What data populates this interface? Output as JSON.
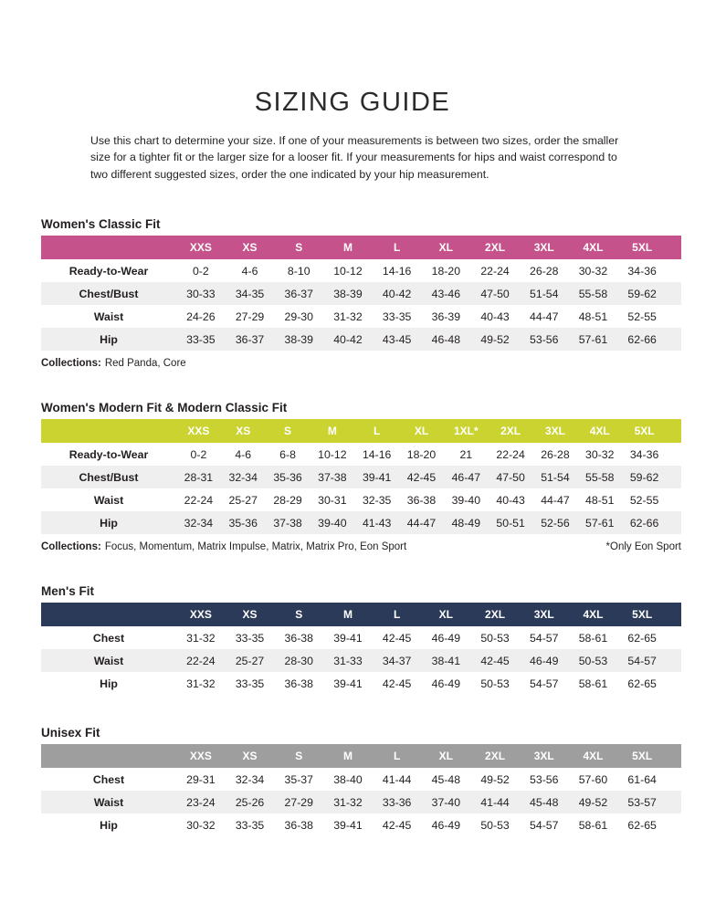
{
  "page": {
    "title": "SIZING GUIDE",
    "intro": "Use this chart to determine your size. If one of your measurements is between two sizes, order the smaller size for a tighter fit or the larger size for a looser fit. If your measurements for hips and waist correspond to two different suggested sizes, order the one indicated by your hip measurement."
  },
  "colors": {
    "womens_classic_header": "#C5528A",
    "womens_modern_header": "#CAD32F",
    "mens_header": "#2B3A59",
    "unisex_header": "#9E9E9E",
    "row_stripe": "#EFEFEF",
    "text": "#231F20"
  },
  "tables": [
    {
      "title": "Women's Classic Fit",
      "header_color": "#C5528A",
      "columns": [
        "XXS",
        "XS",
        "S",
        "M",
        "L",
        "XL",
        "2XL",
        "3XL",
        "4XL",
        "5XL"
      ],
      "rows": [
        {
          "label": "Ready-to-Wear",
          "values": [
            "0-2",
            "4-6",
            "8-10",
            "10-12",
            "14-16",
            "18-20",
            "22-24",
            "26-28",
            "30-32",
            "34-36"
          ]
        },
        {
          "label": "Chest/Bust",
          "values": [
            "30-33",
            "34-35",
            "36-37",
            "38-39",
            "40-42",
            "43-46",
            "47-50",
            "51-54",
            "55-58",
            "59-62"
          ]
        },
        {
          "label": "Waist",
          "values": [
            "24-26",
            "27-29",
            "29-30",
            "31-32",
            "33-35",
            "36-39",
            "40-43",
            "44-47",
            "48-51",
            "52-55"
          ]
        },
        {
          "label": "Hip",
          "values": [
            "33-35",
            "36-37",
            "38-39",
            "40-42",
            "43-45",
            "46-48",
            "49-52",
            "53-56",
            "57-61",
            "62-66"
          ]
        }
      ],
      "collections_label": "Collections:",
      "collections": "Red Panda, Core",
      "note": ""
    },
    {
      "title": "Women's Modern Fit & Modern Classic Fit",
      "header_color": "#CAD32F",
      "columns": [
        "XXS",
        "XS",
        "S",
        "M",
        "L",
        "XL",
        "1XL*",
        "2XL",
        "3XL",
        "4XL",
        "5XL"
      ],
      "rows": [
        {
          "label": "Ready-to-Wear",
          "values": [
            "0-2",
            "4-6",
            "6-8",
            "10-12",
            "14-16",
            "18-20",
            "21",
            "22-24",
            "26-28",
            "30-32",
            "34-36"
          ]
        },
        {
          "label": "Chest/Bust",
          "values": [
            "28-31",
            "32-34",
            "35-36",
            "37-38",
            "39-41",
            "42-45",
            "46-47",
            "47-50",
            "51-54",
            "55-58",
            "59-62"
          ]
        },
        {
          "label": "Waist",
          "values": [
            "22-24",
            "25-27",
            "28-29",
            "30-31",
            "32-35",
            "36-38",
            "39-40",
            "40-43",
            "44-47",
            "48-51",
            "52-55"
          ]
        },
        {
          "label": "Hip",
          "values": [
            "32-34",
            "35-36",
            "37-38",
            "39-40",
            "41-43",
            "44-47",
            "48-49",
            "50-51",
            "52-56",
            "57-61",
            "62-66"
          ]
        }
      ],
      "collections_label": "Collections:",
      "collections": "Focus, Momentum, Matrix Impulse, Matrix, Matrix Pro, Eon Sport",
      "note": "*Only Eon Sport"
    },
    {
      "title": "Men's Fit",
      "header_color": "#2B3A59",
      "columns": [
        "XXS",
        "XS",
        "S",
        "M",
        "L",
        "XL",
        "2XL",
        "3XL",
        "4XL",
        "5XL"
      ],
      "rows": [
        {
          "label": "Chest",
          "values": [
            "31-32",
            "33-35",
            "36-38",
            "39-41",
            "42-45",
            "46-49",
            "50-53",
            "54-57",
            "58-61",
            "62-65"
          ]
        },
        {
          "label": "Waist",
          "values": [
            "22-24",
            "25-27",
            "28-30",
            "31-33",
            "34-37",
            "38-41",
            "42-45",
            "46-49",
            "50-53",
            "54-57"
          ]
        },
        {
          "label": "Hip",
          "values": [
            "31-32",
            "33-35",
            "36-38",
            "39-41",
            "42-45",
            "46-49",
            "50-53",
            "54-57",
            "58-61",
            "62-65"
          ]
        }
      ],
      "collections_label": "",
      "collections": "",
      "note": ""
    },
    {
      "title": "Unisex Fit",
      "header_color": "#9E9E9E",
      "columns": [
        "XXS",
        "XS",
        "S",
        "M",
        "L",
        "XL",
        "2XL",
        "3XL",
        "4XL",
        "5XL"
      ],
      "rows": [
        {
          "label": "Chest",
          "values": [
            "29-31",
            "32-34",
            "35-37",
            "38-40",
            "41-44",
            "45-48",
            "49-52",
            "53-56",
            "57-60",
            "61-64"
          ]
        },
        {
          "label": "Waist",
          "values": [
            "23-24",
            "25-26",
            "27-29",
            "31-32",
            "33-36",
            "37-40",
            "41-44",
            "45-48",
            "49-52",
            "53-57"
          ]
        },
        {
          "label": "Hip",
          "values": [
            "30-32",
            "33-35",
            "36-38",
            "39-41",
            "42-45",
            "46-49",
            "50-53",
            "54-57",
            "58-61",
            "62-65"
          ]
        }
      ],
      "collections_label": "",
      "collections": "",
      "note": ""
    }
  ]
}
